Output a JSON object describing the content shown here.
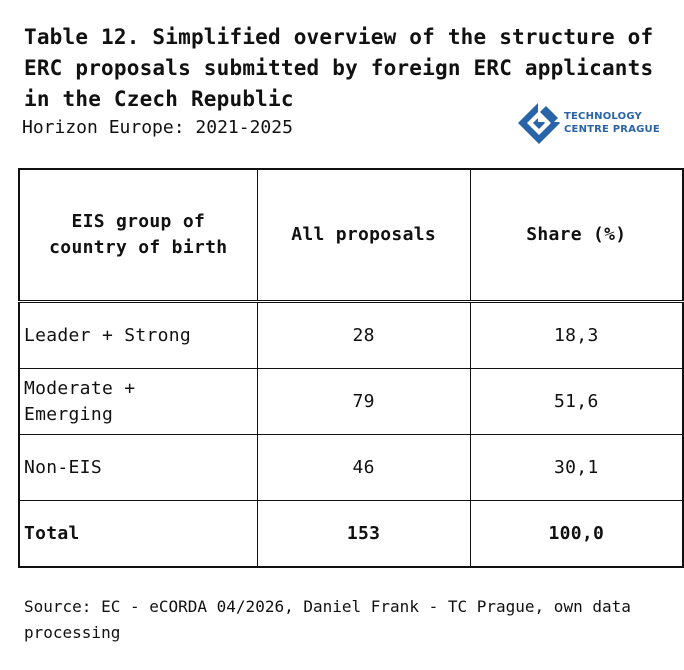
{
  "title": "Table 12. Simplified overview of the structure of ERC proposals submitted by foreign ERC applicants in the Czech Republic",
  "subtitle": "Horizon Europe: 2021-2025",
  "logo": {
    "icon": "tc-prague-logo-icon",
    "line1": "TECHNOLOGY",
    "line2": "CENTRE PRAGUE",
    "color": "#2a64a8"
  },
  "table": {
    "headers": [
      "EIS group of country of birth",
      "All proposals",
      "Share (%)"
    ],
    "rows": [
      {
        "group": "Leader + Strong",
        "proposals": "28",
        "share": "18,3"
      },
      {
        "group": "Moderate + Emerging",
        "proposals": "79",
        "share": "51,6"
      },
      {
        "group": "Non-EIS",
        "proposals": "46",
        "share": "30,1"
      },
      {
        "group": "Total",
        "proposals": "153",
        "share": "100,0"
      }
    ]
  },
  "source": "Source: EC - eCORDA 04/2026, Daniel Frank - TC Prague, own data processing"
}
